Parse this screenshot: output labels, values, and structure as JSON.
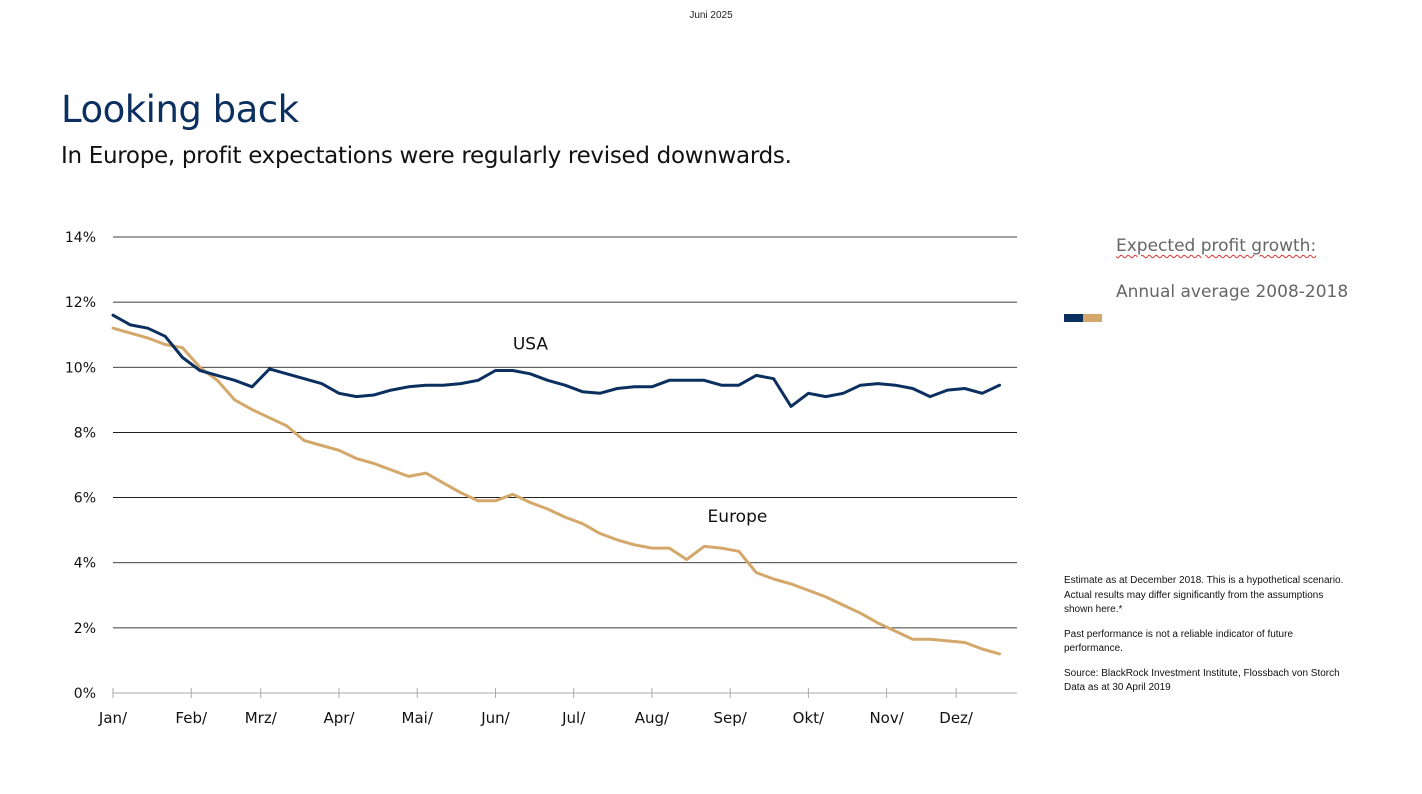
{
  "header": {
    "date": "Juni 2025"
  },
  "title": "Looking back",
  "subtitle": "In Europe, profit expectations were regularly revised downwards.",
  "legend": {
    "title": "Expected profit growth:",
    "subtitle": "Annual average 2008-2018"
  },
  "notes": {
    "estimate": "Estimate as at December 2018. This is a hypothetical scenario. Actual results may differ significantly from the assumptions shown here.*",
    "past_performance": "Past performance is not a reliable indicator of future performance.",
    "source": "Source: BlackRock Investment Institute,     Flossbach von Storch",
    "data_as_at": "Data as at 30 April 2019"
  },
  "colors": {
    "usa": "#0b2f5e",
    "europe": "#d4a86a",
    "title": "#0b2f5e",
    "grid": "#000000"
  },
  "chart_data": {
    "type": "line",
    "title": "",
    "xlabel": "",
    "ylabel": "",
    "ylim": [
      0,
      14
    ],
    "y_ticks": [
      0,
      2,
      4,
      6,
      8,
      10,
      12,
      14
    ],
    "y_tick_labels": [
      "0%",
      "2%",
      "4%",
      "6%",
      "8%",
      "10%",
      "12%",
      "14%"
    ],
    "x_ticks": [
      1,
      5.5,
      9.5,
      14,
      18.5,
      23,
      27.5,
      32,
      36.5,
      41,
      45.5,
      49.5
    ],
    "x_tick_labels": [
      "Jan/",
      "Feb/",
      "Mrz/",
      "Apr/",
      "Mai/",
      "Jun/",
      "Jul/",
      "Aug/",
      "Sep/",
      "Okt/",
      "Nov/",
      "Dez/"
    ],
    "x_range": [
      1,
      53
    ],
    "grid": "horizontal",
    "annotations": [
      {
        "text": "USA",
        "x": 24,
        "y": 10.55
      },
      {
        "text": "Europe",
        "x": 35.2,
        "y": 5.25
      }
    ],
    "series": [
      {
        "name": "USA",
        "values": [
          11.6,
          11.3,
          11.2,
          10.95,
          10.3,
          9.9,
          9.75,
          9.6,
          9.4,
          9.95,
          9.8,
          9.65,
          9.5,
          9.2,
          9.1,
          9.15,
          9.3,
          9.4,
          9.45,
          9.45,
          9.5,
          9.6,
          9.9,
          9.9,
          9.8,
          9.6,
          9.45,
          9.25,
          9.2,
          9.35,
          9.4,
          9.4,
          9.6,
          9.6,
          9.6,
          9.45,
          9.45,
          9.75,
          9.65,
          8.8,
          9.2,
          9.1,
          9.2,
          9.45,
          9.5,
          9.45,
          9.35,
          9.1,
          9.3,
          9.35,
          9.2,
          9.45
        ]
      },
      {
        "name": "Europe",
        "values": [
          11.2,
          11.05,
          10.9,
          10.7,
          10.6,
          10.0,
          9.6,
          9.0,
          8.7,
          8.45,
          8.2,
          7.75,
          7.6,
          7.45,
          7.2,
          7.05,
          6.85,
          6.65,
          6.75,
          6.45,
          6.15,
          5.9,
          5.9,
          6.1,
          5.85,
          5.65,
          5.4,
          5.2,
          4.9,
          4.7,
          4.55,
          4.45,
          4.45,
          4.1,
          4.5,
          4.45,
          4.35,
          3.7,
          3.5,
          3.35,
          3.15,
          2.95,
          2.7,
          2.45,
          2.15,
          1.9,
          1.65,
          1.65,
          1.6,
          1.55,
          1.35,
          1.2
        ]
      }
    ]
  }
}
